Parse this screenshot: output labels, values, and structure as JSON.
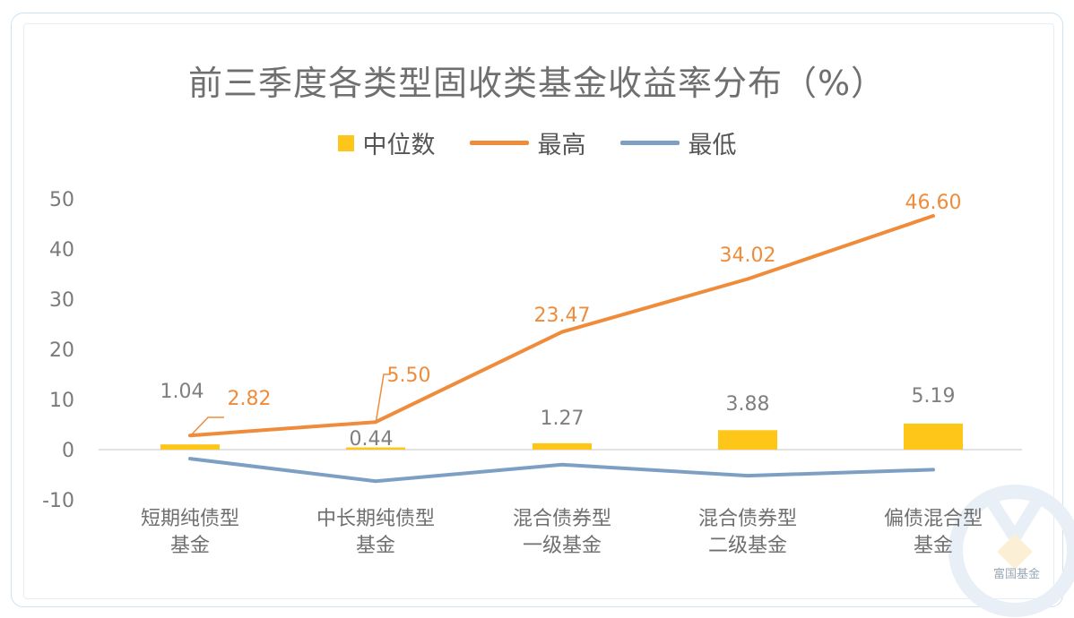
{
  "chart_data": {
    "type": "bar",
    "title": "前三季度各类型固收类基金收益率分布（%）",
    "categories": [
      [
        "短期纯债型",
        "基金"
      ],
      [
        "中长期纯债型",
        "基金"
      ],
      [
        "混合债券型",
        "一级基金"
      ],
      [
        "混合债券型",
        "二级基金"
      ],
      [
        "偏债混合型",
        "基金"
      ]
    ],
    "series": [
      {
        "name": "中位数",
        "kind": "bar",
        "color": "#ffc61a",
        "values": [
          1.04,
          0.44,
          1.27,
          3.88,
          5.19
        ],
        "labels": [
          "1.04",
          "0.44",
          "1.27",
          "3.88",
          "5.19"
        ]
      },
      {
        "name": "最高",
        "kind": "line",
        "color": "#ef8c3b",
        "values": [
          2.82,
          5.5,
          23.47,
          34.02,
          46.6
        ],
        "labels": [
          "2.82",
          "5.50",
          "23.47",
          "34.02",
          "46.60"
        ]
      },
      {
        "name": "最低",
        "kind": "line",
        "color": "#7d9fc4",
        "values": [
          -1.8,
          -6.3,
          -3.0,
          -5.2,
          -4.0
        ]
      }
    ],
    "y_ticks": [
      "50",
      "40",
      "30",
      "20",
      "10",
      "0",
      "-10"
    ],
    "ylim": [
      -10,
      50
    ],
    "grid": false,
    "legend_position": "top"
  },
  "watermark": {
    "text": "富国基金"
  }
}
